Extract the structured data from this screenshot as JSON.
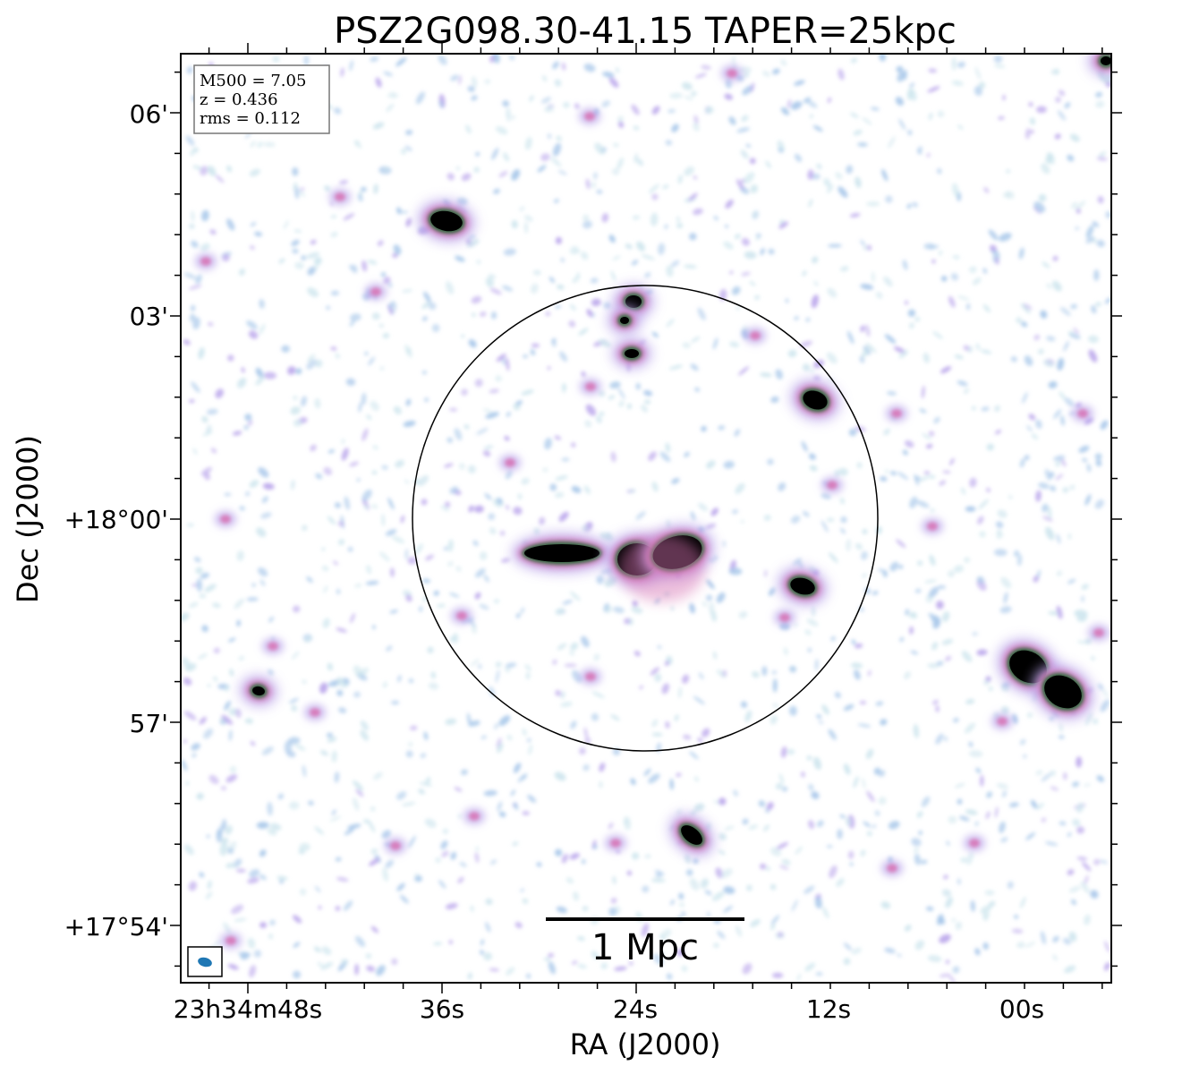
{
  "chart_data": {
    "type": "heatmap",
    "title": "PSZ2G098.30-41.15 TAPER=25kpc",
    "xlabel": "RA (J2000)",
    "ylabel": "Dec (J2000)",
    "x_ticks": [
      "23h34m48s",
      "36s",
      "24s",
      "12s",
      "00s"
    ],
    "y_ticks": [
      "06'",
      "03'",
      "+18°00'",
      "57'",
      "+17°54'"
    ],
    "info_box": [
      "M500 = 7.05",
      "z = 0.436",
      "rms = 0.112"
    ],
    "scale_bar_label": "1 Mpc",
    "colormap": "cubehelix",
    "colors": {
      "noise_light": "#cfe6ee",
      "noise_blue": "#a9c8ea",
      "noise_purple": "#bca8ec",
      "pink": "#d874b4",
      "green": "#2f6b3c",
      "core": "#000000",
      "beam": "#1f77b4",
      "circle": "#000000"
    }
  }
}
